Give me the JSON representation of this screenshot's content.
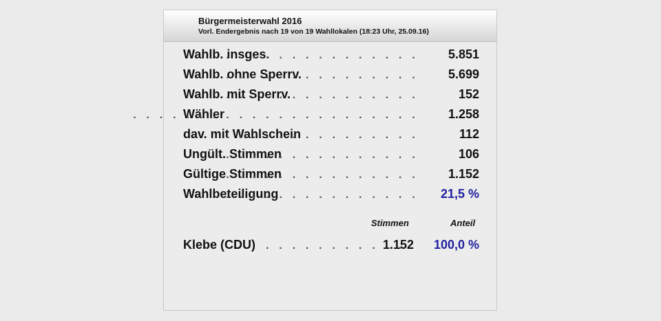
{
  "header": {
    "title": "Bürgermeisterwahl 2016",
    "subtitle": "Vorl. Endergebnis nach 19 von 19 Wahllokalen (18:23 Uhr, 25.09.16)"
  },
  "stats": [
    {
      "label": "Wahlb. insges.",
      "value": "5.851"
    },
    {
      "label": "Wahlb. ohne Sperrv.",
      "value": "5.699"
    },
    {
      "label": "Wahlb. mit Sperrv.",
      "value": "152"
    },
    {
      "label": "Wähler",
      "value": "1.258"
    },
    {
      "label": "dav. mit Wahlschein",
      "value": "112"
    },
    {
      "label": "Ungült. Stimmen",
      "value": "106"
    },
    {
      "label": "Gültige Stimmen",
      "value": "1.152"
    },
    {
      "label": "Wahlbeteiligung",
      "value": "21,5 %"
    }
  ],
  "columns": {
    "votes": "Stimmen",
    "share": "Anteil"
  },
  "candidates": [
    {
      "name": "Klebe (CDU)",
      "votes": "1.152",
      "share": "100,0 %"
    }
  ],
  "colors": {
    "accent": "#1f1fa0",
    "text": "#111111"
  }
}
